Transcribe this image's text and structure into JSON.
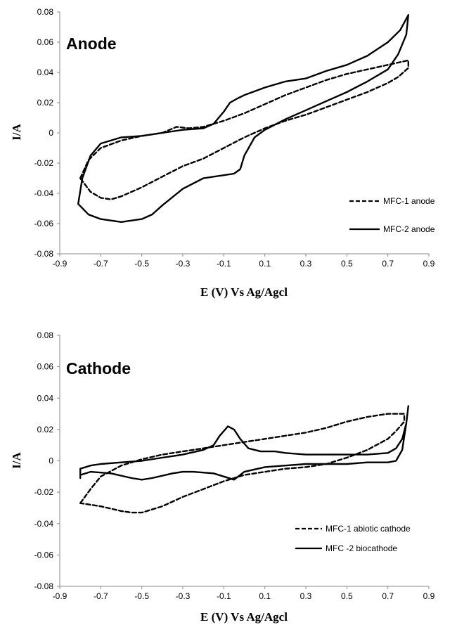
{
  "chart_data": [
    {
      "type": "line",
      "title": "Anode",
      "xlabel": "E (V) Vs Ag/Agcl",
      "ylabel": "I/A",
      "xlim": [
        -0.9,
        0.9
      ],
      "ylim": [
        -0.08,
        0.08
      ],
      "x_ticks": [
        "-0.9",
        "-0.7",
        "-0.5",
        "-0.3",
        "-0.1",
        "0.1",
        "0.3",
        "0.5",
        "0.7",
        "0.9"
      ],
      "y_ticks": [
        "-0.08",
        "-0.06",
        "-0.04",
        "-0.02",
        "0",
        "0.02",
        "0.04",
        "0.06",
        "0.08"
      ],
      "grid": false,
      "legend_position": "bottom-right",
      "series": [
        {
          "name": "MFC-1  anode",
          "style": "dashed",
          "color": "#000000",
          "points": [
            [
              -0.8,
              -0.03
            ],
            [
              -0.76,
              -0.018
            ],
            [
              -0.7,
              -0.01
            ],
            [
              -0.6,
              -0.005
            ],
            [
              -0.5,
              -0.002
            ],
            [
              -0.4,
              0.0
            ],
            [
              -0.33,
              0.004
            ],
            [
              -0.27,
              0.003
            ],
            [
              -0.2,
              0.004
            ],
            [
              -0.1,
              0.008
            ],
            [
              0.0,
              0.013
            ],
            [
              0.1,
              0.019
            ],
            [
              0.2,
              0.025
            ],
            [
              0.3,
              0.03
            ],
            [
              0.4,
              0.035
            ],
            [
              0.5,
              0.039
            ],
            [
              0.6,
              0.042
            ],
            [
              0.7,
              0.045
            ],
            [
              0.8,
              0.048
            ],
            [
              0.8,
              0.043
            ],
            [
              0.75,
              0.037
            ],
            [
              0.7,
              0.033
            ],
            [
              0.6,
              0.027
            ],
            [
              0.5,
              0.022
            ],
            [
              0.4,
              0.017
            ],
            [
              0.3,
              0.012
            ],
            [
              0.2,
              0.008
            ],
            [
              0.1,
              0.003
            ],
            [
              0.0,
              -0.003
            ],
            [
              -0.1,
              -0.01
            ],
            [
              -0.2,
              -0.017
            ],
            [
              -0.3,
              -0.022
            ],
            [
              -0.4,
              -0.029
            ],
            [
              -0.5,
              -0.036
            ],
            [
              -0.6,
              -0.042
            ],
            [
              -0.65,
              -0.044
            ],
            [
              -0.7,
              -0.043
            ],
            [
              -0.75,
              -0.039
            ],
            [
              -0.8,
              -0.03
            ]
          ]
        },
        {
          "name": "MFC-2 anode",
          "style": "solid",
          "color": "#000000",
          "points": [
            [
              -0.81,
              -0.047
            ],
            [
              -0.79,
              -0.03
            ],
            [
              -0.75,
              -0.015
            ],
            [
              -0.7,
              -0.007
            ],
            [
              -0.6,
              -0.003
            ],
            [
              -0.5,
              -0.002
            ],
            [
              -0.4,
              0.0
            ],
            [
              -0.3,
              0.002
            ],
            [
              -0.2,
              0.003
            ],
            [
              -0.15,
              0.006
            ],
            [
              -0.1,
              0.014
            ],
            [
              -0.07,
              0.02
            ],
            [
              -0.03,
              0.023
            ],
            [
              0.0,
              0.025
            ],
            [
              0.1,
              0.03
            ],
            [
              0.2,
              0.034
            ],
            [
              0.3,
              0.036
            ],
            [
              0.4,
              0.041
            ],
            [
              0.5,
              0.045
            ],
            [
              0.6,
              0.051
            ],
            [
              0.7,
              0.06
            ],
            [
              0.76,
              0.068
            ],
            [
              0.8,
              0.078
            ],
            [
              0.79,
              0.065
            ],
            [
              0.75,
              0.052
            ],
            [
              0.7,
              0.042
            ],
            [
              0.6,
              0.034
            ],
            [
              0.5,
              0.027
            ],
            [
              0.4,
              0.021
            ],
            [
              0.3,
              0.015
            ],
            [
              0.2,
              0.009
            ],
            [
              0.1,
              0.002
            ],
            [
              0.05,
              -0.003
            ],
            [
              0.0,
              -0.015
            ],
            [
              -0.02,
              -0.024
            ],
            [
              -0.05,
              -0.027
            ],
            [
              -0.1,
              -0.028
            ],
            [
              -0.2,
              -0.03
            ],
            [
              -0.3,
              -0.037
            ],
            [
              -0.4,
              -0.048
            ],
            [
              -0.45,
              -0.054
            ],
            [
              -0.5,
              -0.057
            ],
            [
              -0.6,
              -0.059
            ],
            [
              -0.7,
              -0.057
            ],
            [
              -0.76,
              -0.054
            ],
            [
              -0.81,
              -0.047
            ]
          ]
        }
      ]
    },
    {
      "type": "line",
      "title": "Cathode",
      "xlabel": "E (V) Vs Ag/Agcl",
      "ylabel": "I/A",
      "xlim": [
        -0.9,
        0.9
      ],
      "ylim": [
        -0.08,
        0.08
      ],
      "x_ticks": [
        "-0.9",
        "-0.7",
        "-0.5",
        "-0.3",
        "-0.1",
        "0.1",
        "0.3",
        "0.5",
        "0.7",
        "0.9"
      ],
      "y_ticks": [
        "-0.08",
        "-0.06",
        "-0.04",
        "-0.02",
        "0",
        "0.02",
        "0.04",
        "0.06",
        "0.08"
      ],
      "grid": false,
      "legend_position": "bottom-right",
      "series": [
        {
          "name": "MFC-1 abiotic cathode",
          "style": "dashed",
          "color": "#000000",
          "points": [
            [
              -0.8,
              -0.027
            ],
            [
              -0.75,
              -0.018
            ],
            [
              -0.7,
              -0.01
            ],
            [
              -0.6,
              -0.003
            ],
            [
              -0.5,
              0.001
            ],
            [
              -0.4,
              0.004
            ],
            [
              -0.3,
              0.006
            ],
            [
              -0.2,
              0.008
            ],
            [
              -0.1,
              0.01
            ],
            [
              0.0,
              0.012
            ],
            [
              0.1,
              0.014
            ],
            [
              0.2,
              0.016
            ],
            [
              0.3,
              0.018
            ],
            [
              0.4,
              0.021
            ],
            [
              0.5,
              0.025
            ],
            [
              0.6,
              0.028
            ],
            [
              0.7,
              0.03
            ],
            [
              0.78,
              0.03
            ],
            [
              0.78,
              0.025
            ],
            [
              0.74,
              0.019
            ],
            [
              0.7,
              0.014
            ],
            [
              0.6,
              0.007
            ],
            [
              0.5,
              0.002
            ],
            [
              0.4,
              -0.002
            ],
            [
              0.3,
              -0.004
            ],
            [
              0.2,
              -0.005
            ],
            [
              0.1,
              -0.007
            ],
            [
              0.0,
              -0.009
            ],
            [
              -0.1,
              -0.013
            ],
            [
              -0.2,
              -0.018
            ],
            [
              -0.3,
              -0.023
            ],
            [
              -0.4,
              -0.029
            ],
            [
              -0.5,
              -0.033
            ],
            [
              -0.55,
              -0.033
            ],
            [
              -0.6,
              -0.032
            ],
            [
              -0.7,
              -0.029
            ],
            [
              -0.8,
              -0.027
            ]
          ]
        },
        {
          "name": "MFC -2 biocathode",
          "style": "solid",
          "color": "#000000",
          "points": [
            [
              -0.8,
              -0.011
            ],
            [
              -0.8,
              -0.005
            ],
            [
              -0.75,
              -0.003
            ],
            [
              -0.7,
              -0.002
            ],
            [
              -0.6,
              -0.001
            ],
            [
              -0.5,
              0.0
            ],
            [
              -0.4,
              0.002
            ],
            [
              -0.3,
              0.004
            ],
            [
              -0.2,
              0.007
            ],
            [
              -0.15,
              0.01
            ],
            [
              -0.12,
              0.016
            ],
            [
              -0.08,
              0.022
            ],
            [
              -0.05,
              0.02
            ],
            [
              -0.02,
              0.014
            ],
            [
              0.02,
              0.008
            ],
            [
              0.08,
              0.006
            ],
            [
              0.15,
              0.006
            ],
            [
              0.2,
              0.005
            ],
            [
              0.3,
              0.004
            ],
            [
              0.4,
              0.004
            ],
            [
              0.5,
              0.004
            ],
            [
              0.6,
              0.004
            ],
            [
              0.7,
              0.005
            ],
            [
              0.74,
              0.008
            ],
            [
              0.77,
              0.014
            ],
            [
              0.79,
              0.024
            ],
            [
              0.8,
              0.035
            ],
            [
              0.79,
              0.024
            ],
            [
              0.77,
              0.007
            ],
            [
              0.74,
              0.0
            ],
            [
              0.7,
              -0.001
            ],
            [
              0.6,
              -0.001
            ],
            [
              0.5,
              -0.002
            ],
            [
              0.4,
              -0.002
            ],
            [
              0.3,
              -0.002
            ],
            [
              0.2,
              -0.003
            ],
            [
              0.1,
              -0.004
            ],
            [
              0.0,
              -0.007
            ],
            [
              -0.05,
              -0.012
            ],
            [
              -0.1,
              -0.01
            ],
            [
              -0.15,
              -0.008
            ],
            [
              -0.25,
              -0.007
            ],
            [
              -0.3,
              -0.007
            ],
            [
              -0.35,
              -0.008
            ],
            [
              -0.45,
              -0.011
            ],
            [
              -0.5,
              -0.012
            ],
            [
              -0.55,
              -0.011
            ],
            [
              -0.65,
              -0.008
            ],
            [
              -0.75,
              -0.007
            ],
            [
              -0.8,
              -0.009
            ],
            [
              -0.8,
              -0.011
            ]
          ]
        }
      ]
    }
  ]
}
